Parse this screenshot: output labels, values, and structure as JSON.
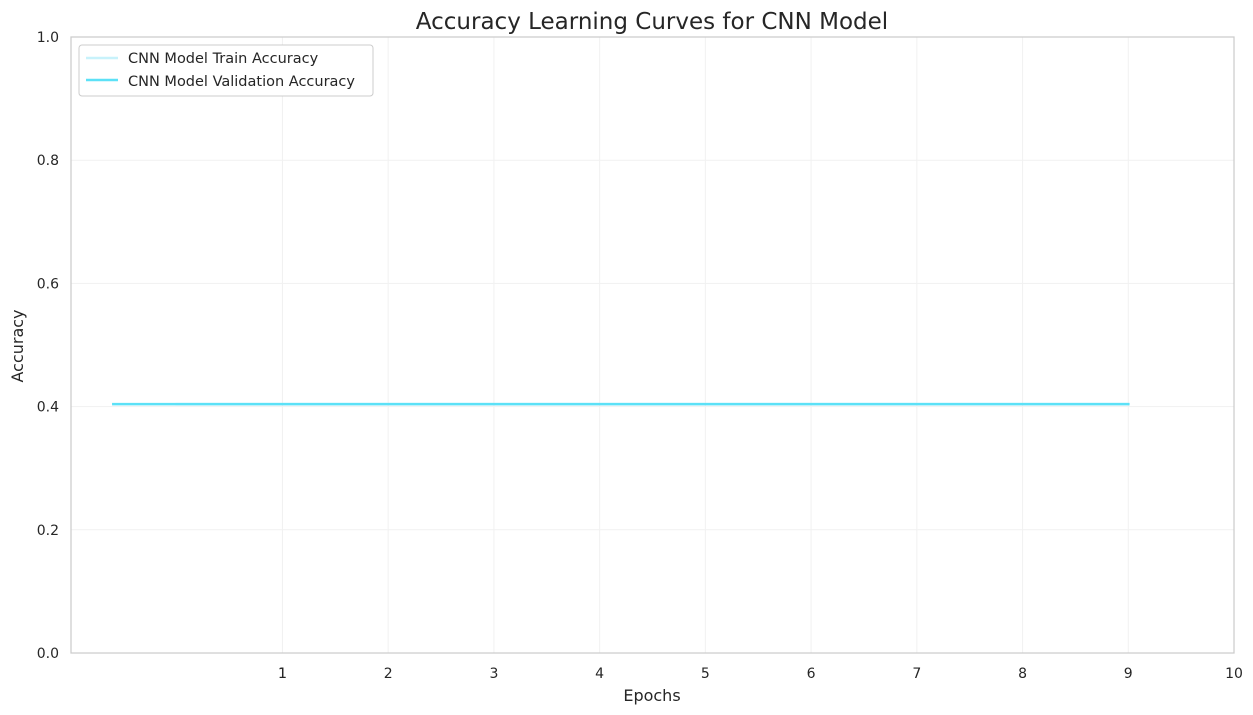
{
  "chart_data": {
    "type": "line",
    "title": "Accuracy Learning Curves for CNN Model",
    "xlabel": "Epochs",
    "ylabel": "Accuracy",
    "xlim": [
      -1.0,
      10.0
    ],
    "ylim": [
      0.0,
      1.0
    ],
    "x_tick_labels": [
      "1",
      "1",
      "2",
      "3",
      "4",
      "5",
      "6",
      "7",
      "8",
      "9",
      "10"
    ],
    "y_tick_labels": [
      "0.0",
      "0.2",
      "0.4",
      "0.6",
      "0.8",
      "1.0"
    ],
    "grid": true,
    "legend_position": "upper-left",
    "series": [
      {
        "name": "CNN Model Train Accuracy",
        "color": "#c8f2fb",
        "x": [
          0,
          1,
          2,
          3,
          4,
          5,
          6,
          7,
          8,
          9
        ],
        "values": [
          0.404,
          0.404,
          0.404,
          0.404,
          0.404,
          0.404,
          0.404,
          0.404,
          0.404,
          0.404
        ]
      },
      {
        "name": "CNN Model Validation Accuracy",
        "color": "#5ce1f7",
        "x": [
          -0.6,
          0,
          1,
          2,
          3,
          4,
          5,
          6,
          7,
          8,
          9
        ],
        "values": [
          0.404,
          0.404,
          0.404,
          0.404,
          0.404,
          0.404,
          0.404,
          0.404,
          0.404,
          0.404,
          0.404
        ]
      }
    ]
  }
}
